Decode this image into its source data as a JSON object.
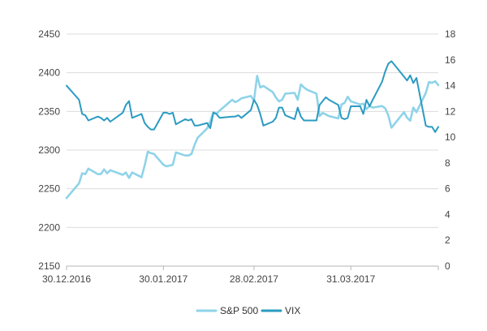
{
  "chart_data": {
    "type": "line",
    "title": "",
    "xlabel": "",
    "ylabel": "",
    "x_tick_labels": [
      "30.12.2016",
      "30.01.2017",
      "28.02.2017",
      "31.03.2017"
    ],
    "x_range": [
      "2016-12-30",
      "2017-04-28"
    ],
    "y_left": {
      "ylim": [
        2150,
        2450
      ],
      "ticks": [
        2150,
        2200,
        2250,
        2300,
        2350,
        2400,
        2450
      ]
    },
    "y_right": {
      "ylim": [
        0,
        18
      ],
      "ticks": [
        0,
        2,
        4,
        6,
        8,
        10,
        12,
        14,
        16,
        18
      ]
    },
    "grid": "horizontal",
    "legend_position": "bottom",
    "series": [
      {
        "name": "S&P 500",
        "axis": "left",
        "color": "#8fd3e8",
        "points": [
          [
            "2016-12-30",
            2238
          ],
          [
            "2017-01-03",
            2257
          ],
          [
            "2017-01-04",
            2270
          ],
          [
            "2017-01-05",
            2269
          ],
          [
            "2017-01-06",
            2276
          ],
          [
            "2017-01-09",
            2269
          ],
          [
            "2017-01-10",
            2269
          ],
          [
            "2017-01-11",
            2275
          ],
          [
            "2017-01-12",
            2270
          ],
          [
            "2017-01-13",
            2274
          ],
          [
            "2017-01-17",
            2268
          ],
          [
            "2017-01-18",
            2271
          ],
          [
            "2017-01-19",
            2264
          ],
          [
            "2017-01-20",
            2271
          ],
          [
            "2017-01-23",
            2265
          ],
          [
            "2017-01-24",
            2280
          ],
          [
            "2017-01-25",
            2298
          ],
          [
            "2017-01-26",
            2296
          ],
          [
            "2017-01-27",
            2295
          ],
          [
            "2017-01-30",
            2281
          ],
          [
            "2017-01-31",
            2279
          ],
          [
            "2017-02-01",
            2280
          ],
          [
            "2017-02-02",
            2281
          ],
          [
            "2017-02-03",
            2297
          ],
          [
            "2017-02-06",
            2293
          ],
          [
            "2017-02-07",
            2293
          ],
          [
            "2017-02-08",
            2295
          ],
          [
            "2017-02-09",
            2307
          ],
          [
            "2017-02-10",
            2316
          ],
          [
            "2017-02-13",
            2328
          ],
          [
            "2017-02-14",
            2337
          ],
          [
            "2017-02-15",
            2349
          ],
          [
            "2017-02-16",
            2347
          ],
          [
            "2017-02-17",
            2351
          ],
          [
            "2017-02-21",
            2365
          ],
          [
            "2017-02-22",
            2362
          ],
          [
            "2017-02-23",
            2364
          ],
          [
            "2017-02-24",
            2367
          ],
          [
            "2017-02-27",
            2370
          ],
          [
            "2017-02-28",
            2364
          ],
          [
            "2017-03-01",
            2396
          ],
          [
            "2017-03-02",
            2381
          ],
          [
            "2017-03-03",
            2383
          ],
          [
            "2017-03-06",
            2375
          ],
          [
            "2017-03-07",
            2368
          ],
          [
            "2017-03-08",
            2363
          ],
          [
            "2017-03-09",
            2365
          ],
          [
            "2017-03-10",
            2373
          ],
          [
            "2017-03-13",
            2374
          ],
          [
            "2017-03-14",
            2365
          ],
          [
            "2017-03-15",
            2385
          ],
          [
            "2017-03-16",
            2381
          ],
          [
            "2017-03-17",
            2378
          ],
          [
            "2017-03-20",
            2373
          ],
          [
            "2017-03-21",
            2344
          ],
          [
            "2017-03-22",
            2348
          ],
          [
            "2017-03-23",
            2346
          ],
          [
            "2017-03-24",
            2344
          ],
          [
            "2017-03-27",
            2341
          ],
          [
            "2017-03-28",
            2359
          ],
          [
            "2017-03-29",
            2361
          ],
          [
            "2017-03-30",
            2369
          ],
          [
            "2017-03-31",
            2363
          ],
          [
            "2017-04-03",
            2359
          ],
          [
            "2017-04-04",
            2360
          ],
          [
            "2017-04-05",
            2353
          ],
          [
            "2017-04-06",
            2357
          ],
          [
            "2017-04-07",
            2355
          ],
          [
            "2017-04-10",
            2357
          ],
          [
            "2017-04-11",
            2354
          ],
          [
            "2017-04-12",
            2345
          ],
          [
            "2017-04-13",
            2329
          ],
          [
            "2017-04-17",
            2349
          ],
          [
            "2017-04-18",
            2342
          ],
          [
            "2017-04-19",
            2338
          ],
          [
            "2017-04-20",
            2355
          ],
          [
            "2017-04-21",
            2349
          ],
          [
            "2017-04-24",
            2374
          ],
          [
            "2017-04-25",
            2388
          ],
          [
            "2017-04-26",
            2387
          ],
          [
            "2017-04-27",
            2389
          ],
          [
            "2017-04-28",
            2384
          ]
        ]
      },
      {
        "name": "VIX",
        "axis": "right",
        "color": "#2b9bc2",
        "points": [
          [
            "2016-12-30",
            14.0
          ],
          [
            "2017-01-03",
            12.9
          ],
          [
            "2017-01-04",
            11.8
          ],
          [
            "2017-01-05",
            11.7
          ],
          [
            "2017-01-06",
            11.3
          ],
          [
            "2017-01-09",
            11.6
          ],
          [
            "2017-01-10",
            11.5
          ],
          [
            "2017-01-11",
            11.3
          ],
          [
            "2017-01-12",
            11.5
          ],
          [
            "2017-01-13",
            11.2
          ],
          [
            "2017-01-17",
            11.9
          ],
          [
            "2017-01-18",
            12.5
          ],
          [
            "2017-01-19",
            12.8
          ],
          [
            "2017-01-20",
            11.5
          ],
          [
            "2017-01-23",
            11.8
          ],
          [
            "2017-01-24",
            11.1
          ],
          [
            "2017-01-25",
            10.8
          ],
          [
            "2017-01-26",
            10.6
          ],
          [
            "2017-01-27",
            10.6
          ],
          [
            "2017-01-30",
            11.9
          ],
          [
            "2017-01-31",
            11.9
          ],
          [
            "2017-02-01",
            11.8
          ],
          [
            "2017-02-02",
            11.9
          ],
          [
            "2017-02-03",
            11.0
          ],
          [
            "2017-02-06",
            11.4
          ],
          [
            "2017-02-07",
            11.3
          ],
          [
            "2017-02-08",
            11.4
          ],
          [
            "2017-02-09",
            10.9
          ],
          [
            "2017-02-10",
            10.9
          ],
          [
            "2017-02-13",
            11.1
          ],
          [
            "2017-02-14",
            10.7
          ],
          [
            "2017-02-15",
            11.9
          ],
          [
            "2017-02-16",
            11.8
          ],
          [
            "2017-02-17",
            11.5
          ],
          [
            "2017-02-21",
            11.6
          ],
          [
            "2017-02-22",
            11.6
          ],
          [
            "2017-02-23",
            11.7
          ],
          [
            "2017-02-24",
            11.5
          ],
          [
            "2017-02-27",
            12.1
          ],
          [
            "2017-02-28",
            12.9
          ],
          [
            "2017-03-01",
            12.5
          ],
          [
            "2017-03-02",
            11.8
          ],
          [
            "2017-03-03",
            10.9
          ],
          [
            "2017-03-06",
            11.2
          ],
          [
            "2017-03-07",
            11.5
          ],
          [
            "2017-03-08",
            12.3
          ],
          [
            "2017-03-09",
            12.3
          ],
          [
            "2017-03-10",
            11.7
          ],
          [
            "2017-03-13",
            11.4
          ],
          [
            "2017-03-14",
            12.3
          ],
          [
            "2017-03-15",
            11.6
          ],
          [
            "2017-03-16",
            11.3
          ],
          [
            "2017-03-17",
            11.3
          ],
          [
            "2017-03-20",
            11.3
          ],
          [
            "2017-03-21",
            12.5
          ],
          [
            "2017-03-22",
            12.8
          ],
          [
            "2017-03-23",
            13.1
          ],
          [
            "2017-03-24",
            12.9
          ],
          [
            "2017-03-27",
            12.5
          ],
          [
            "2017-03-28",
            11.5
          ],
          [
            "2017-03-29",
            11.4
          ],
          [
            "2017-03-30",
            11.5
          ],
          [
            "2017-03-31",
            12.4
          ],
          [
            "2017-04-03",
            12.4
          ],
          [
            "2017-04-04",
            11.8
          ],
          [
            "2017-04-05",
            12.9
          ],
          [
            "2017-04-06",
            12.4
          ],
          [
            "2017-04-07",
            12.9
          ],
          [
            "2017-04-10",
            14.3
          ],
          [
            "2017-04-11",
            15.1
          ],
          [
            "2017-04-12",
            15.7
          ],
          [
            "2017-04-13",
            15.9
          ],
          [
            "2017-04-17",
            14.7
          ],
          [
            "2017-04-18",
            14.4
          ],
          [
            "2017-04-19",
            14.8
          ],
          [
            "2017-04-20",
            14.2
          ],
          [
            "2017-04-21",
            14.6
          ],
          [
            "2017-04-24",
            10.9
          ],
          [
            "2017-04-25",
            10.8
          ],
          [
            "2017-04-26",
            10.8
          ],
          [
            "2017-04-27",
            10.4
          ],
          [
            "2017-04-28",
            10.8
          ]
        ]
      }
    ]
  }
}
